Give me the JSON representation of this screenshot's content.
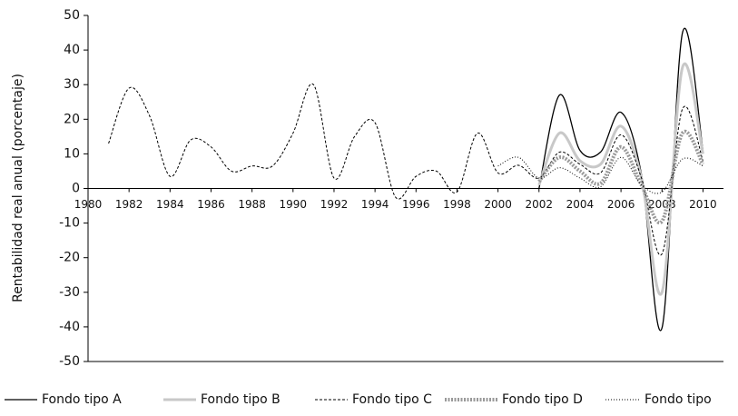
{
  "chart_data": {
    "type": "line",
    "ylabel": "Rentabilidad real anual (porcentaje)",
    "x": [
      1981,
      1982,
      1983,
      1984,
      1985,
      1986,
      1987,
      1988,
      1989,
      1990,
      1991,
      1992,
      1993,
      1994,
      1995,
      1996,
      1997,
      1998,
      1999,
      2000,
      2001,
      2002,
      2003,
      2004,
      2005,
      2006,
      2007,
      2008,
      2009,
      2010
    ],
    "series": [
      {
        "name": "Fondo tipo A",
        "color": "#000000",
        "style": "solid",
        "values": [
          null,
          null,
          null,
          null,
          null,
          null,
          null,
          null,
          null,
          null,
          null,
          null,
          null,
          null,
          null,
          null,
          null,
          null,
          null,
          null,
          null,
          0,
          27,
          11,
          10.5,
          22,
          4,
          -40.3,
          45,
          11
        ]
      },
      {
        "name": "Fondo tipo B",
        "color": "#c8c8c8",
        "style": "thick",
        "values": [
          null,
          null,
          null,
          null,
          null,
          null,
          null,
          null,
          null,
          null,
          null,
          null,
          null,
          null,
          null,
          null,
          null,
          null,
          null,
          null,
          null,
          1,
          16,
          8,
          7,
          18,
          3,
          -30,
          35,
          10
        ]
      },
      {
        "name": "Fondo tipo C",
        "color": "#000000",
        "style": "dashed",
        "values": [
          13,
          29,
          21,
          3.5,
          14,
          12,
          5,
          6.5,
          6.5,
          16,
          30,
          3,
          15,
          19,
          -2.5,
          3.5,
          5,
          -1,
          16,
          4.5,
          6.7,
          3,
          10.5,
          7,
          4.5,
          15.5,
          3,
          -18.9,
          23,
          8
        ]
      },
      {
        "name": "Fondo tipo D",
        "color": "#999999",
        "style": "thickdotted",
        "values": [
          null,
          null,
          null,
          null,
          null,
          null,
          null,
          null,
          null,
          null,
          null,
          null,
          null,
          null,
          null,
          null,
          null,
          null,
          null,
          null,
          null,
          2,
          9,
          5,
          1.5,
          12,
          1,
          -9.5,
          16,
          7
        ]
      },
      {
        "name": "Fondo tipo",
        "color": "#000000",
        "style": "dotted",
        "values": [
          null,
          null,
          null,
          null,
          null,
          null,
          null,
          null,
          null,
          null,
          null,
          null,
          null,
          null,
          null,
          null,
          null,
          null,
          null,
          6.5,
          9,
          3,
          6,
          3,
          0.5,
          9,
          1,
          -1,
          8.5,
          6.5
        ]
      }
    ],
    "xlim": [
      1980,
      2011
    ],
    "xticks": [
      1980,
      1982,
      1984,
      1986,
      1988,
      1990,
      1992,
      1994,
      1996,
      1998,
      2000,
      2002,
      2004,
      2006,
      2008,
      2010
    ],
    "ylim": [
      -50,
      50
    ],
    "yticks": [
      -50,
      -40,
      -30,
      -20,
      -10,
      0,
      10,
      20,
      30,
      40,
      50
    ]
  }
}
